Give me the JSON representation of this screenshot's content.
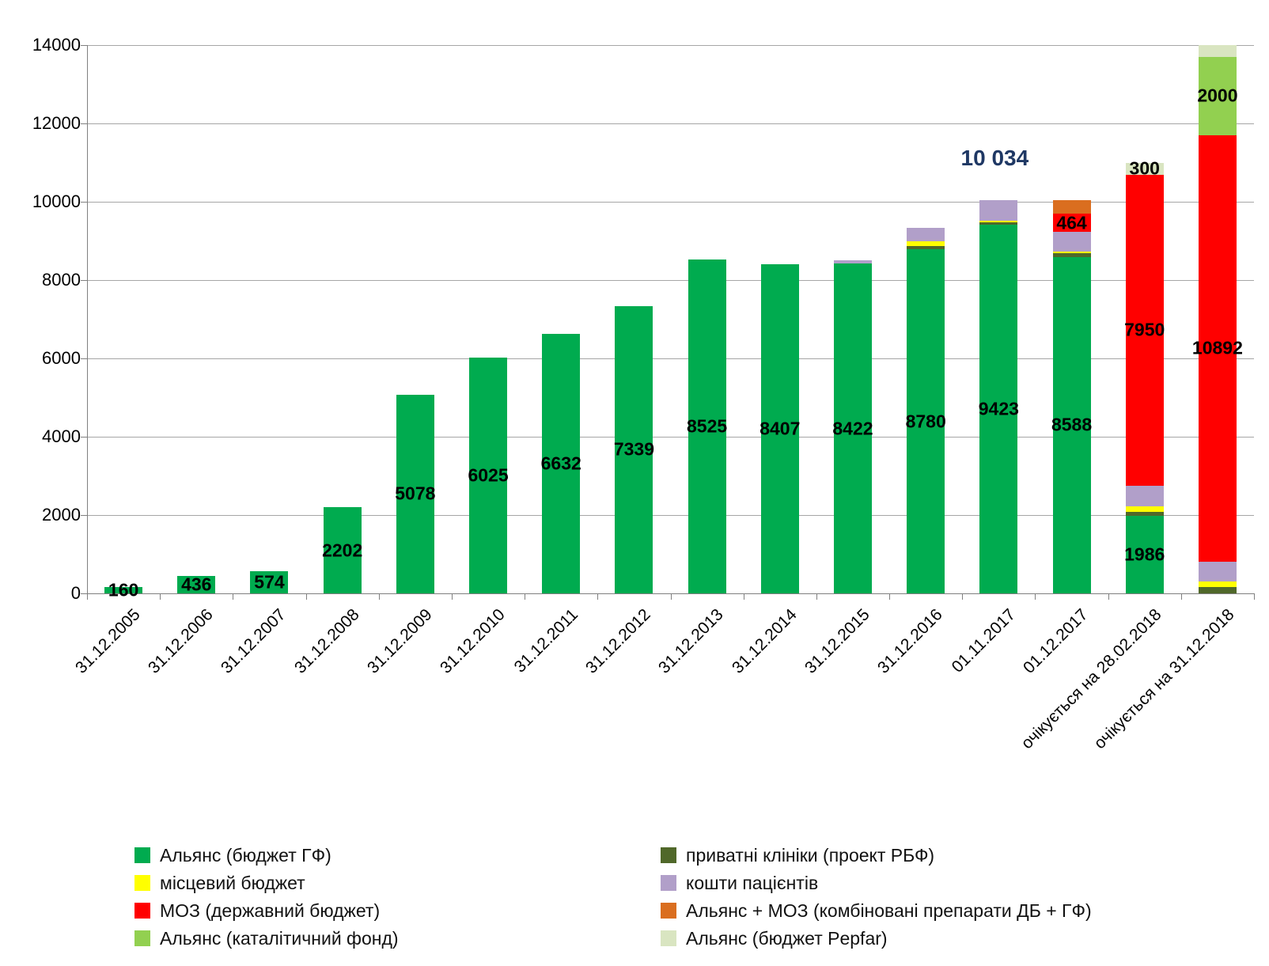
{
  "chart_data": {
    "type": "bar",
    "stacked": true,
    "title": "",
    "xlabel": "",
    "ylabel": "",
    "ylim": [
      0,
      14000
    ],
    "yticks": [
      0,
      2000,
      4000,
      6000,
      8000,
      10000,
      12000,
      14000
    ],
    "grid": true,
    "legend_position": "bottom",
    "categories": [
      "31.12.2005",
      "31.12.2006",
      "31.12.2007",
      "31.12.2008",
      "31.12.2009",
      "31.12.2010",
      "31.12.2011",
      "31.12.2012",
      "31.12.2013",
      "31.12.2014",
      "31.12.2015",
      "31.12.2016",
      "01.11.2017",
      "01.12.2017",
      "очікується на 28.02.2018",
      "очікується на 31.12.2018"
    ],
    "series": [
      {
        "name": "Альянс (бюджет ГФ)",
        "color": "#00AB4F",
        "values": [
          160,
          436,
          574,
          2202,
          5078,
          6025,
          6632,
          7339,
          8525,
          8407,
          8422,
          8780,
          9423,
          8588,
          1986,
          0
        ],
        "labels": [
          "160",
          "436",
          "574",
          "2202",
          "5078",
          "6025",
          "6632",
          "7339",
          "8525",
          "8407",
          "8422",
          "8780",
          "9423",
          "8588",
          "1986",
          ""
        ]
      },
      {
        "name": "приватні клініки (проект РБФ)",
        "color": "#50682A",
        "values": [
          0,
          0,
          0,
          0,
          0,
          0,
          0,
          0,
          0,
          0,
          0,
          90,
          60,
          100,
          100,
          160
        ],
        "labels": []
      },
      {
        "name": "місцевий бюджет",
        "color": "#FFFF00",
        "values": [
          0,
          0,
          0,
          0,
          0,
          0,
          0,
          0,
          0,
          0,
          0,
          120,
          30,
          40,
          140,
          140
        ],
        "labels": []
      },
      {
        "name": "кошти пацієнтів",
        "color": "#B19FC9",
        "values": [
          0,
          0,
          0,
          0,
          0,
          0,
          0,
          0,
          0,
          0,
          90,
          350,
          520,
          500,
          520,
          510
        ],
        "labels": []
      },
      {
        "name": "МОЗ (державний бюджет)",
        "color": "#FF0000",
        "values": [
          0,
          0,
          0,
          0,
          0,
          0,
          0,
          0,
          0,
          0,
          0,
          0,
          0,
          464,
          7950,
          10892
        ],
        "labels": [
          "",
          "",
          "",
          "",
          "",
          "",
          "",
          "",
          "",
          "",
          "",
          "",
          "",
          "464",
          "7950",
          "10892"
        ]
      },
      {
        "name": "Альянс + МОЗ (комбіновані препарати ДБ + ГФ)",
        "color": "#DA6E1F",
        "values": [
          0,
          0,
          0,
          0,
          0,
          0,
          0,
          0,
          0,
          0,
          0,
          0,
          0,
          350,
          0,
          0
        ],
        "labels": []
      },
      {
        "name": "Альянс (каталітичний фонд)",
        "color": "#92D050",
        "values": [
          0,
          0,
          0,
          0,
          0,
          0,
          0,
          0,
          0,
          0,
          0,
          0,
          0,
          0,
          0,
          2000
        ],
        "labels": [
          "",
          "",
          "",
          "",
          "",
          "",
          "",
          "",
          "",
          "",
          "",
          "",
          "",
          "",
          "",
          "2000"
        ]
      },
      {
        "name": "Альянс (бюджет Pepfar)",
        "color": "#D9E5C1",
        "values": [
          0,
          0,
          0,
          0,
          0,
          0,
          0,
          0,
          0,
          0,
          0,
          0,
          0,
          0,
          300,
          290
        ],
        "labels": [
          "",
          "",
          "",
          "",
          "",
          "",
          "",
          "",
          "",
          "",
          "",
          "",
          "",
          "",
          "300",
          ""
        ]
      }
    ],
    "annotation": {
      "text": "10 034",
      "category": "01.11.2017",
      "color": "#1F3864"
    }
  }
}
